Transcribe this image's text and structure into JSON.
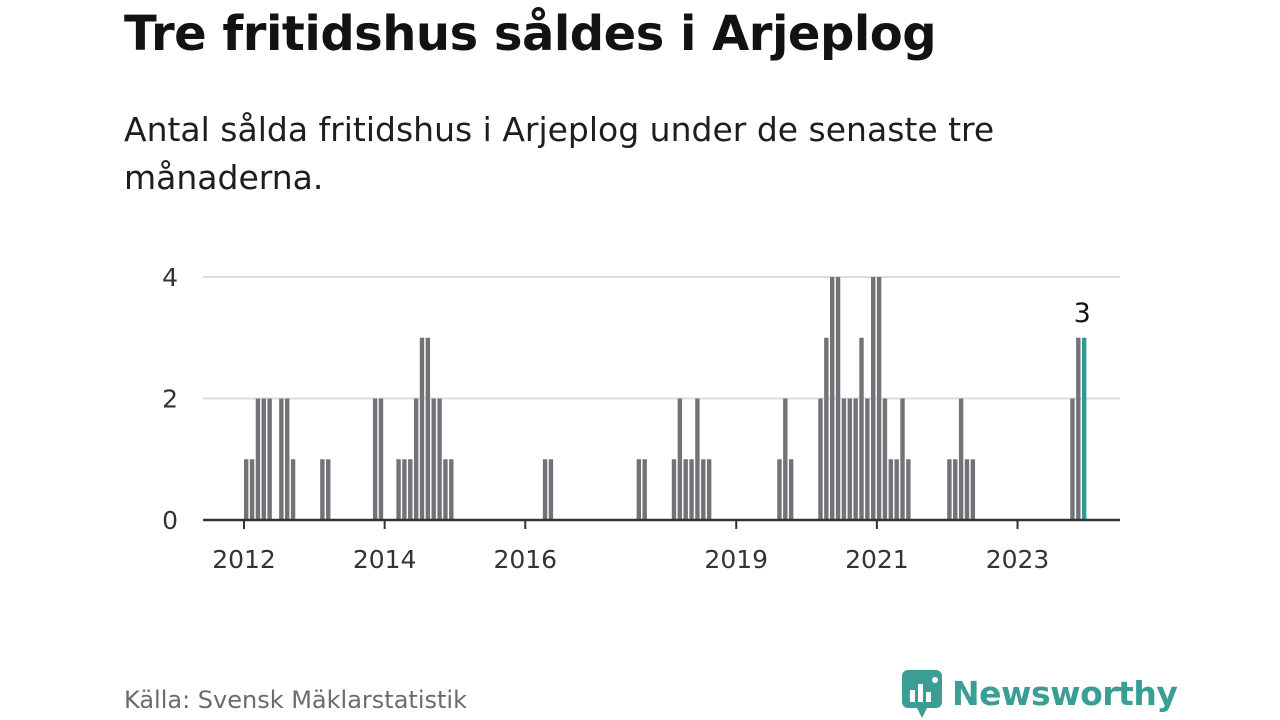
{
  "title": "Tre fritidshus såldes i Arjeplog",
  "subtitle": "Antal sålda fritidshus i Arjeplog under de senaste tre månaderna.",
  "source": "Källa: Svensk Mäklarstatistik",
  "brand": "Newsworthy",
  "colors": {
    "bar": "#737278",
    "highlight": "#2a9d92",
    "grid": "#dcdcdc",
    "axis": "#333333",
    "brand": "#3a9e95"
  },
  "chart_data": {
    "type": "bar",
    "ylim": [
      0,
      4
    ],
    "yticks": [
      0,
      2,
      4
    ],
    "x_tick_labels": [
      "2012",
      "2014",
      "2016",
      "2019",
      "2021",
      "2023"
    ],
    "x_tick_dates": [
      "2012-01",
      "2014-01",
      "2016-01",
      "2019-01",
      "2021-01",
      "2023-01"
    ],
    "x_start": "2012-01",
    "x_end": "2024-02",
    "annotation": {
      "label": "3",
      "period": "2023-12"
    },
    "highlight_period": "2023-12",
    "grid": true,
    "bars": [
      {
        "period": "2012-01",
        "value": 1
      },
      {
        "period": "2012-02",
        "value": 1
      },
      {
        "period": "2012-03",
        "value": 2
      },
      {
        "period": "2012-04",
        "value": 2
      },
      {
        "period": "2012-05",
        "value": 2
      },
      {
        "period": "2012-07",
        "value": 2
      },
      {
        "period": "2012-08",
        "value": 2
      },
      {
        "period": "2012-09",
        "value": 1
      },
      {
        "period": "2013-02",
        "value": 1
      },
      {
        "period": "2013-03",
        "value": 1
      },
      {
        "period": "2013-11",
        "value": 2
      },
      {
        "period": "2013-12",
        "value": 2
      },
      {
        "period": "2014-03",
        "value": 1
      },
      {
        "period": "2014-04",
        "value": 1
      },
      {
        "period": "2014-05",
        "value": 1
      },
      {
        "period": "2014-06",
        "value": 2
      },
      {
        "period": "2014-07",
        "value": 3
      },
      {
        "period": "2014-08",
        "value": 3
      },
      {
        "period": "2014-09",
        "value": 2
      },
      {
        "period": "2014-10",
        "value": 2
      },
      {
        "period": "2014-11",
        "value": 1
      },
      {
        "period": "2014-12",
        "value": 1
      },
      {
        "period": "2016-04",
        "value": 1
      },
      {
        "period": "2016-05",
        "value": 1
      },
      {
        "period": "2017-08",
        "value": 1
      },
      {
        "period": "2017-09",
        "value": 1
      },
      {
        "period": "2018-02",
        "value": 1
      },
      {
        "period": "2018-03",
        "value": 2
      },
      {
        "period": "2018-04",
        "value": 1
      },
      {
        "period": "2018-05",
        "value": 1
      },
      {
        "period": "2018-06",
        "value": 2
      },
      {
        "period": "2018-07",
        "value": 1
      },
      {
        "period": "2018-08",
        "value": 1
      },
      {
        "period": "2019-08",
        "value": 1
      },
      {
        "period": "2019-09",
        "value": 2
      },
      {
        "period": "2019-10",
        "value": 1
      },
      {
        "period": "2020-03",
        "value": 2
      },
      {
        "period": "2020-04",
        "value": 3
      },
      {
        "period": "2020-05",
        "value": 4
      },
      {
        "period": "2020-06",
        "value": 4
      },
      {
        "period": "2020-07",
        "value": 2
      },
      {
        "period": "2020-08",
        "value": 2
      },
      {
        "period": "2020-09",
        "value": 2
      },
      {
        "period": "2020-10",
        "value": 3
      },
      {
        "period": "2020-11",
        "value": 2
      },
      {
        "period": "2020-12",
        "value": 4
      },
      {
        "period": "2021-01",
        "value": 4
      },
      {
        "period": "2021-02",
        "value": 2
      },
      {
        "period": "2021-03",
        "value": 1
      },
      {
        "period": "2021-04",
        "value": 1
      },
      {
        "period": "2021-05",
        "value": 2
      },
      {
        "period": "2021-06",
        "value": 1
      },
      {
        "period": "2022-01",
        "value": 1
      },
      {
        "period": "2022-02",
        "value": 1
      },
      {
        "period": "2022-03",
        "value": 2
      },
      {
        "period": "2022-04",
        "value": 1
      },
      {
        "period": "2022-05",
        "value": 1
      },
      {
        "period": "2023-10",
        "value": 2
      },
      {
        "period": "2023-11",
        "value": 3
      },
      {
        "period": "2023-12",
        "value": 3
      }
    ]
  }
}
